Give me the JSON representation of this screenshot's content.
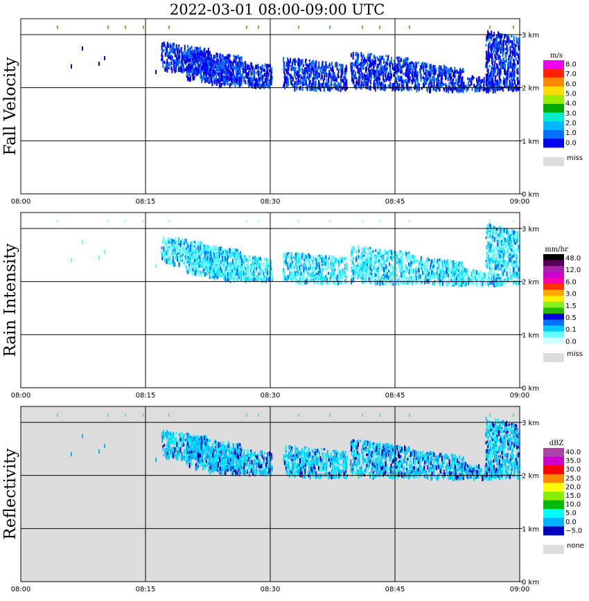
{
  "title": "2022-03-01   08:00-09:00 UTC",
  "chart_data": [
    {
      "type": "heatmap",
      "title": "Fall Velocity",
      "x_ticks": [
        "08:00",
        "08:15",
        "08:30",
        "08:45",
        "09:00"
      ],
      "y_ticks": [
        "0 km",
        "1 km",
        "2 km",
        "3 km"
      ],
      "ylim_km": [
        0,
        3.3
      ],
      "grid": true,
      "background": "#ffffff",
      "legend": {
        "unit": "m/s",
        "placement": "right",
        "colors": [
          "#0000ee",
          "#0070ff",
          "#00b8ff",
          "#00eecc",
          "#00aa00",
          "#99ee00",
          "#ffdd00",
          "#ff8800",
          "#ff2200",
          "#ee00ee"
        ],
        "labels": [
          "0.0",
          "1.0",
          "2.0",
          "3.0",
          "4.0",
          "5.0",
          "6.0",
          "7.0",
          "8.0"
        ],
        "miss_label": "miss",
        "miss_color": "#dddddd"
      },
      "echo_colors": [
        "#0000ee",
        "#0070ff",
        "#0000ee",
        "#0070ff",
        "#0000ee"
      ],
      "speck_color": "#66cc33"
    },
    {
      "type": "heatmap",
      "title": "Rain Intensity",
      "x_ticks": [
        "08:00",
        "08:15",
        "08:30",
        "08:45",
        "09:00"
      ],
      "y_ticks": [
        "0 km",
        "1 km",
        "2 km",
        "3 km"
      ],
      "ylim_km": [
        0,
        3.3
      ],
      "grid": true,
      "background": "#ffffff",
      "legend": {
        "unit": "mm/hr",
        "placement": "right",
        "colors": [
          "#ccffff",
          "#66ffff",
          "#00ccff",
          "#0070ff",
          "#0000dd",
          "#22bb00",
          "#88ee22",
          "#ffee00",
          "#ffaa00",
          "#ff3300",
          "#ff00aa",
          "#cc00cc",
          "#aa22aa",
          "#550055",
          "#000000"
        ],
        "labels": [
          "0.0",
          "0.1",
          "0.5",
          "1.5",
          "3.0",
          "6.0",
          "12.0",
          "48.0"
        ],
        "miss_label": "miss",
        "miss_color": "#dddddd"
      },
      "echo_colors": [
        "#66ffff",
        "#00ddff",
        "#66ffff",
        "#33eeff",
        "#0070ff"
      ],
      "speck_color": "#aaffee"
    },
    {
      "type": "heatmap",
      "title": "Reflectivity",
      "x_ticks": [
        "08:00",
        "08:15",
        "08:30",
        "08:45",
        "09:00"
      ],
      "y_ticks": [
        "0 km",
        "1 km",
        "2 km",
        "3 km"
      ],
      "ylim_km": [
        0,
        3.3
      ],
      "grid": true,
      "background": "#dddddd",
      "legend": {
        "unit": "dBZ",
        "placement": "right",
        "colors": [
          "#0000bb",
          "#00b4ff",
          "#00ffff",
          "#00bb00",
          "#88ee00",
          "#ffff00",
          "#ff8800",
          "#ff0000",
          "#cc00cc",
          "#aa44aa"
        ],
        "labels": [
          "−5.0",
          "0.0",
          "5.0",
          "10.0",
          "15.0",
          "20.0",
          "25.0",
          "30.0",
          "35.0",
          "40.0"
        ],
        "miss_label": "none",
        "miss_color": "#dddddd"
      },
      "echo_colors": [
        "#00bbff",
        "#00ddff",
        "#00ffff",
        "#00bbff",
        "#0000bb"
      ],
      "speck_color": "#66ddaa"
    }
  ]
}
